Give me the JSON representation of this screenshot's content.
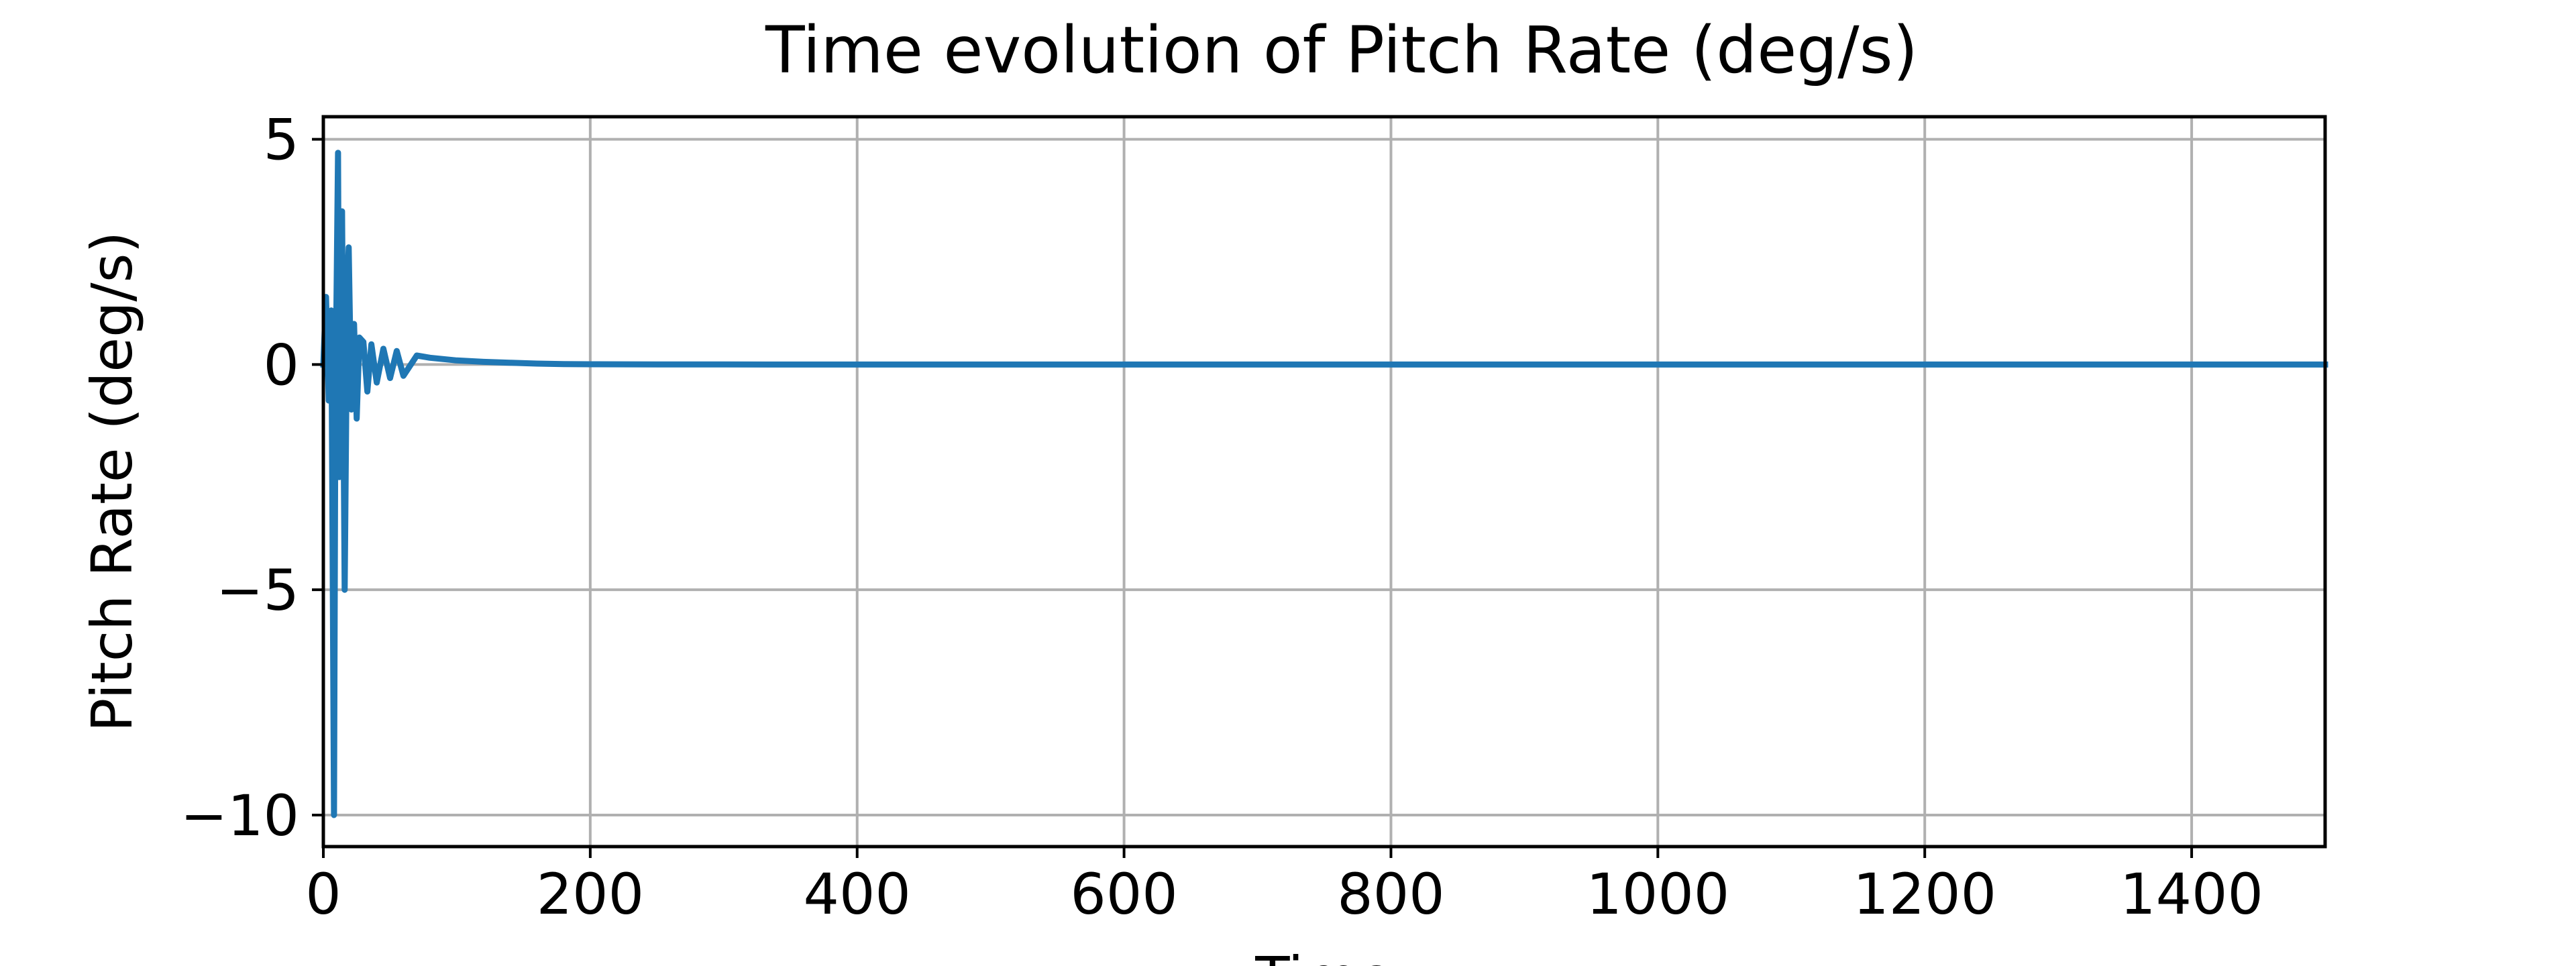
{
  "chart_data": {
    "type": "line",
    "title": "Time evolution of Pitch Rate (deg/s)",
    "xlabel": "Time",
    "ylabel": "Pitch Rate (deg/s)",
    "xlim": [
      0,
      1500
    ],
    "ylim": [
      -10.7,
      5.5
    ],
    "x_ticks": [
      0,
      200,
      400,
      600,
      800,
      1000,
      1200,
      1400
    ],
    "x_tick_labels": [
      "0",
      "200",
      "400",
      "600",
      "800",
      "1000",
      "1200",
      "1400"
    ],
    "y_ticks": [
      5,
      0,
      -5,
      -10
    ],
    "y_tick_labels": [
      "5",
      "0",
      "−5",
      "−10"
    ],
    "grid": true,
    "line_color": "#1f77b4",
    "series": [
      {
        "x": [
          0,
          2,
          4,
          6,
          8,
          9,
          11,
          12,
          14,
          16,
          18,
          19,
          21,
          23,
          25,
          27,
          30,
          33,
          36,
          40,
          45,
          50,
          55,
          60,
          70,
          80,
          90,
          100,
          120,
          140,
          160,
          180,
          200,
          250,
          300,
          400,
          600,
          800,
          1000,
          1200,
          1500
        ],
        "y": [
          0,
          1.5,
          -0.8,
          1.2,
          -10.0,
          -1.0,
          4.7,
          -2.5,
          3.4,
          -5.0,
          1.8,
          2.6,
          -1.0,
          0.9,
          -1.2,
          0.6,
          0.5,
          -0.6,
          0.45,
          -0.4,
          0.35,
          -0.3,
          0.3,
          -0.25,
          0.2,
          0.15,
          0.12,
          0.09,
          0.06,
          0.04,
          0.02,
          0.01,
          0.005,
          0.002,
          0.001,
          0,
          0,
          0,
          0,
          0,
          0
        ]
      }
    ]
  }
}
